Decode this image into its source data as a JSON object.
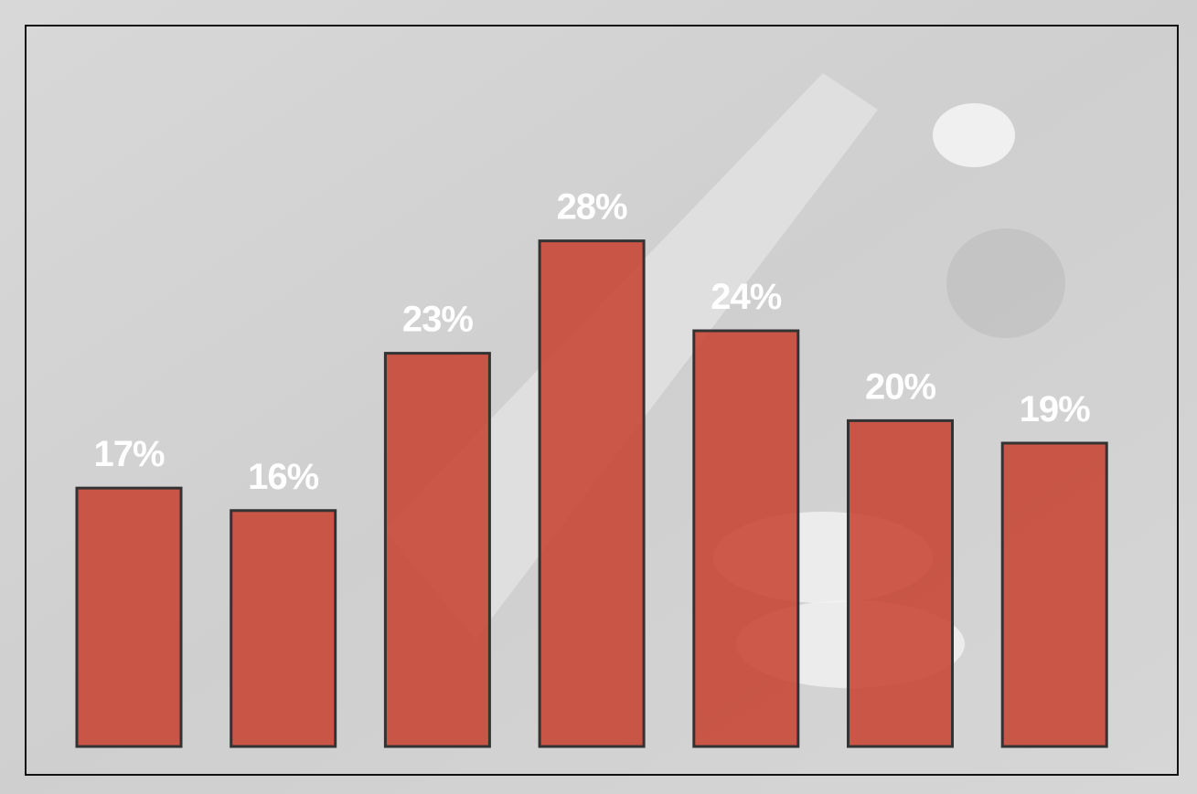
{
  "chart_data": {
    "type": "bar",
    "categories": [
      null,
      null,
      null,
      null,
      null,
      null,
      null
    ],
    "values": [
      17,
      16,
      23,
      28,
      24,
      20,
      19
    ],
    "value_labels": [
      "17%",
      "16%",
      "23%",
      "28%",
      "24%",
      "20%",
      "19%"
    ],
    "color": "#c7402e",
    "ylim": [
      5.5,
      37.5
    ]
  }
}
